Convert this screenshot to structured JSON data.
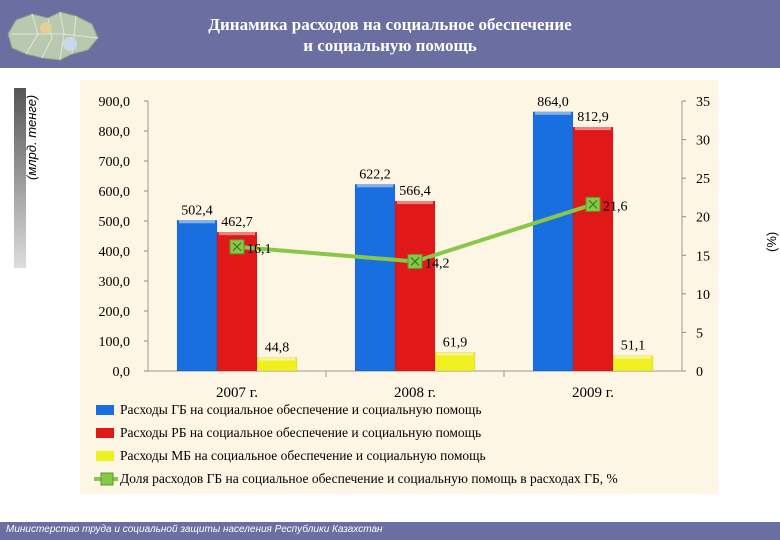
{
  "header": {
    "title_line1": "Динамика расходов на социальное обеспечение",
    "title_line2": "и социальную помощь"
  },
  "footer": {
    "text": "Министерство труда и социальной защиты населения Республики Казахстан"
  },
  "colors": {
    "header": "#6a6ea0",
    "blue": "#1a6fe0",
    "red": "#e01818",
    "yellow": "#f0f020",
    "green": "#88c848",
    "plot_bg": "#fdf6e4"
  },
  "chart_data": {
    "type": "bar",
    "categories": [
      "2007 г.",
      "2008 г.",
      "2009 г."
    ],
    "ylabel": "(млрд. тенге)",
    "ylabel_right": "(%)",
    "ylim": [
      0,
      900
    ],
    "ylim_right": [
      0,
      35
    ],
    "yticks_left": [
      "900,0",
      "800,0",
      "700,0",
      "600,0",
      "500,0",
      "400,0",
      "300,0",
      "200,0",
      "100,0",
      "0,0"
    ],
    "yticks_right": [
      "35",
      "30",
      "25",
      "20",
      "15",
      "10",
      "5",
      "0"
    ],
    "series": [
      {
        "name": "Расходы ГБ на социальное обеспечение и социальную помощь",
        "type": "bar",
        "values": [
          502.4,
          622.2,
          864.0
        ],
        "labels": [
          "502,4",
          "622,2",
          "864,0"
        ],
        "color": "#1a6fe0"
      },
      {
        "name": "Расходы РБ на социальное обеспечение и социальную помощь",
        "type": "bar",
        "values": [
          462.7,
          566.4,
          812.9
        ],
        "labels": [
          "462,7",
          "566,4",
          "812,9"
        ],
        "color": "#e01818"
      },
      {
        "name": "Расходы МБ на социальное обеспечение и социальную помощь",
        "type": "bar",
        "values": [
          44.8,
          61.9,
          51.1
        ],
        "labels": [
          "44,8",
          "61,9",
          "51,1"
        ],
        "color": "#f0f020"
      },
      {
        "name": "Доля расходов ГБ на социальное обеспечение и социальную помощь в расходах ГБ, %",
        "type": "line",
        "axis": "right",
        "values": [
          16.1,
          14.2,
          21.6
        ],
        "labels": [
          "16,1",
          "14,2",
          "21,6"
        ],
        "color": "#88c848"
      }
    ]
  }
}
